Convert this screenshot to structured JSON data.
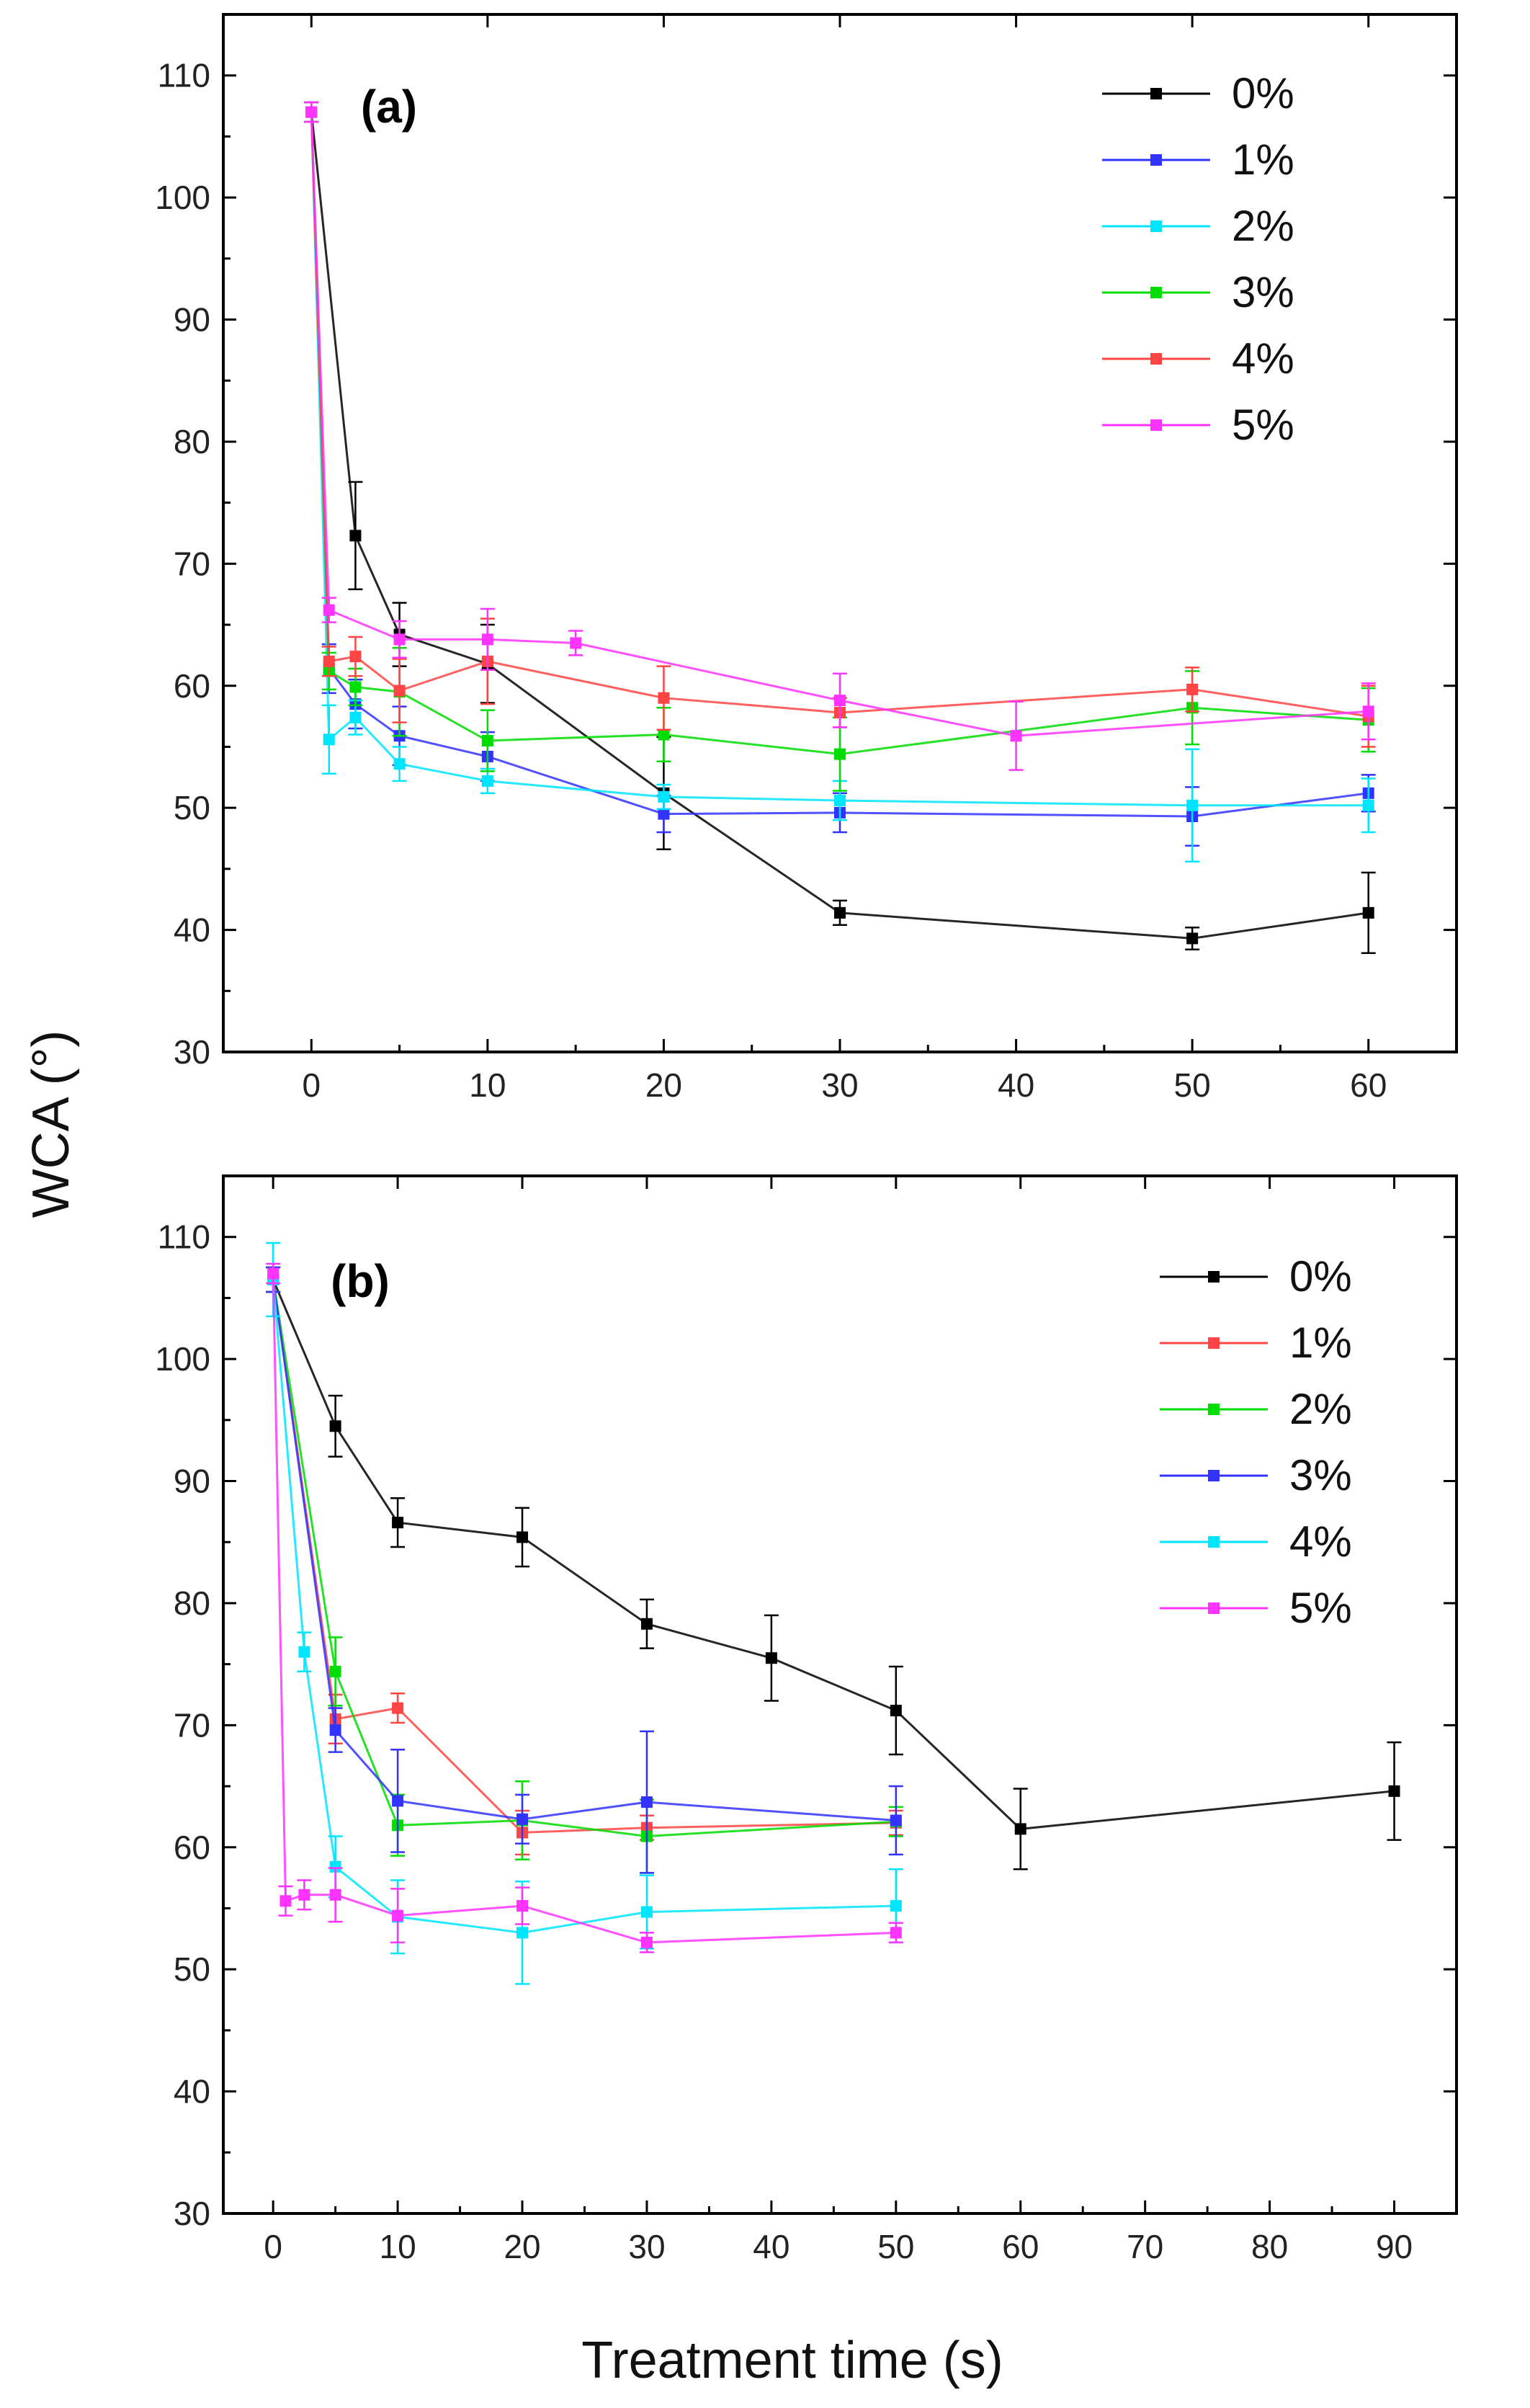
{
  "figure": {
    "ylabel": "WCA (°)",
    "xlabel": "Treatment time (s)"
  },
  "chart_data": [
    {
      "type": "line",
      "panel_label": "(a)",
      "xlim": [
        -5,
        65
      ],
      "ylim": [
        30,
        115
      ],
      "xticks": [
        0,
        10,
        20,
        30,
        40,
        50,
        60
      ],
      "yticks": [
        30,
        40,
        50,
        60,
        70,
        80,
        90,
        100,
        110
      ],
      "legend_position": "top-right",
      "series": [
        {
          "name": "0%",
          "color": "#000000",
          "x": [
            0,
            2.5,
            5,
            10,
            20,
            30,
            50,
            60
          ],
          "y": [
            107,
            72.3,
            64.2,
            61.8,
            51.2,
            41.4,
            39.3,
            41.4
          ],
          "err": [
            0.8,
            4.4,
            2.6,
            3.2,
            4.6,
            1.0,
            0.9,
            3.3
          ]
        },
        {
          "name": "1%",
          "color": "#3333ff",
          "x": [
            0,
            1,
            2.5,
            5,
            10,
            20,
            30,
            50,
            60
          ],
          "y": [
            107,
            61.4,
            58.5,
            55.9,
            54.2,
            49.5,
            49.6,
            49.3,
            51.2
          ],
          "err": [
            0.8,
            2.0,
            2.0,
            2.4,
            2.0,
            1.5,
            1.6,
            2.4,
            1.5
          ]
        },
        {
          "name": "2%",
          "color": "#00e5ff",
          "x": [
            0,
            1,
            2.5,
            5,
            10,
            20,
            30,
            50,
            60
          ],
          "y": [
            107,
            55.6,
            57.4,
            53.6,
            52.2,
            50.9,
            50.6,
            50.2,
            50.2
          ],
          "err": [
            0.8,
            2.8,
            1.4,
            1.4,
            1.0,
            1.0,
            1.6,
            4.6,
            2.2
          ]
        },
        {
          "name": "3%",
          "color": "#00dd00",
          "x": [
            0,
            1,
            2.5,
            5,
            10,
            20,
            30,
            50,
            60
          ],
          "y": [
            107,
            61.2,
            59.9,
            59.5,
            55.5,
            56.0,
            54.4,
            58.2,
            57.2
          ],
          "err": [
            0.8,
            1.5,
            1.5,
            3.6,
            2.5,
            2.2,
            3.0,
            3.0,
            2.6
          ]
        },
        {
          "name": "4%",
          "color": "#ff4444",
          "x": [
            0,
            1,
            2.5,
            5,
            10,
            20,
            30,
            50,
            60
          ],
          "y": [
            107,
            62.0,
            62.4,
            59.6,
            62.0,
            59.0,
            57.8,
            59.7,
            57.5
          ],
          "err": [
            0.8,
            1.2,
            1.6,
            2.6,
            3.5,
            2.6,
            1.2,
            1.8,
            2.5
          ]
        },
        {
          "name": "5%",
          "color": "#ff33ff",
          "x": [
            0,
            1,
            5,
            10,
            15,
            30,
            40,
            60
          ],
          "y": [
            107,
            66.2,
            63.8,
            63.8,
            63.5,
            58.8,
            55.9,
            57.9
          ],
          "err": [
            0.8,
            1.0,
            1.5,
            2.5,
            1.0,
            2.2,
            2.8,
            2.3
          ]
        }
      ]
    },
    {
      "type": "line",
      "panel_label": "(b)",
      "xlim": [
        -4,
        95
      ],
      "ylim": [
        30,
        115
      ],
      "xticks": [
        0,
        10,
        20,
        30,
        40,
        50,
        60,
        70,
        80,
        90
      ],
      "yticks": [
        30,
        40,
        50,
        60,
        70,
        80,
        90,
        100,
        110
      ],
      "legend_position": "top-right",
      "series": [
        {
          "name": "0%",
          "color": "#000000",
          "x": [
            0,
            5,
            10,
            20,
            30,
            40,
            50,
            60,
            90
          ],
          "y": [
            106.5,
            94.5,
            86.6,
            85.4,
            78.3,
            75.5,
            71.2,
            61.5,
            64.6
          ],
          "err": [
            1.0,
            2.5,
            2.0,
            2.4,
            2.0,
            3.5,
            3.6,
            3.3,
            4.0
          ]
        },
        {
          "name": "1%",
          "color": "#ff4444",
          "x": [
            0,
            5,
            10,
            20,
            30,
            50
          ],
          "y": [
            106.5,
            70.5,
            71.4,
            61.2,
            61.6,
            62.0
          ],
          "err": [
            1.0,
            2.0,
            1.2,
            1.8,
            1.0,
            1.0
          ]
        },
        {
          "name": "2%",
          "color": "#00dd00",
          "x": [
            0,
            5,
            10,
            20,
            30,
            50
          ],
          "y": [
            106.5,
            74.4,
            61.8,
            62.2,
            60.9,
            62.1
          ],
          "err": [
            1.0,
            2.8,
            2.5,
            3.2,
            3.0,
            1.2
          ]
        },
        {
          "name": "3%",
          "color": "#3333ff",
          "x": [
            0,
            5,
            10,
            20,
            30,
            50
          ],
          "y": [
            106.5,
            69.6,
            63.8,
            62.3,
            63.7,
            62.2
          ],
          "err": [
            1.0,
            1.8,
            4.2,
            2.0,
            5.8,
            2.8
          ]
        },
        {
          "name": "4%",
          "color": "#00e5ff",
          "x": [
            0,
            2.5,
            5,
            10,
            20,
            30,
            50
          ],
          "y": [
            106.5,
            76.0,
            58.4,
            54.3,
            53.0,
            54.7,
            55.2
          ],
          "err": [
            3.0,
            1.6,
            2.5,
            3.0,
            4.2,
            3.0,
            3.0
          ]
        },
        {
          "name": "5%",
          "color": "#ff33ff",
          "x": [
            0,
            1,
            2.5,
            5,
            10,
            20,
            30,
            50
          ],
          "y": [
            107,
            55.6,
            56.1,
            56.1,
            54.4,
            55.2,
            52.2,
            53.0
          ],
          "err": [
            0.8,
            1.2,
            1.2,
            2.2,
            2.2,
            1.5,
            0.8,
            0.8
          ]
        }
      ]
    }
  ]
}
